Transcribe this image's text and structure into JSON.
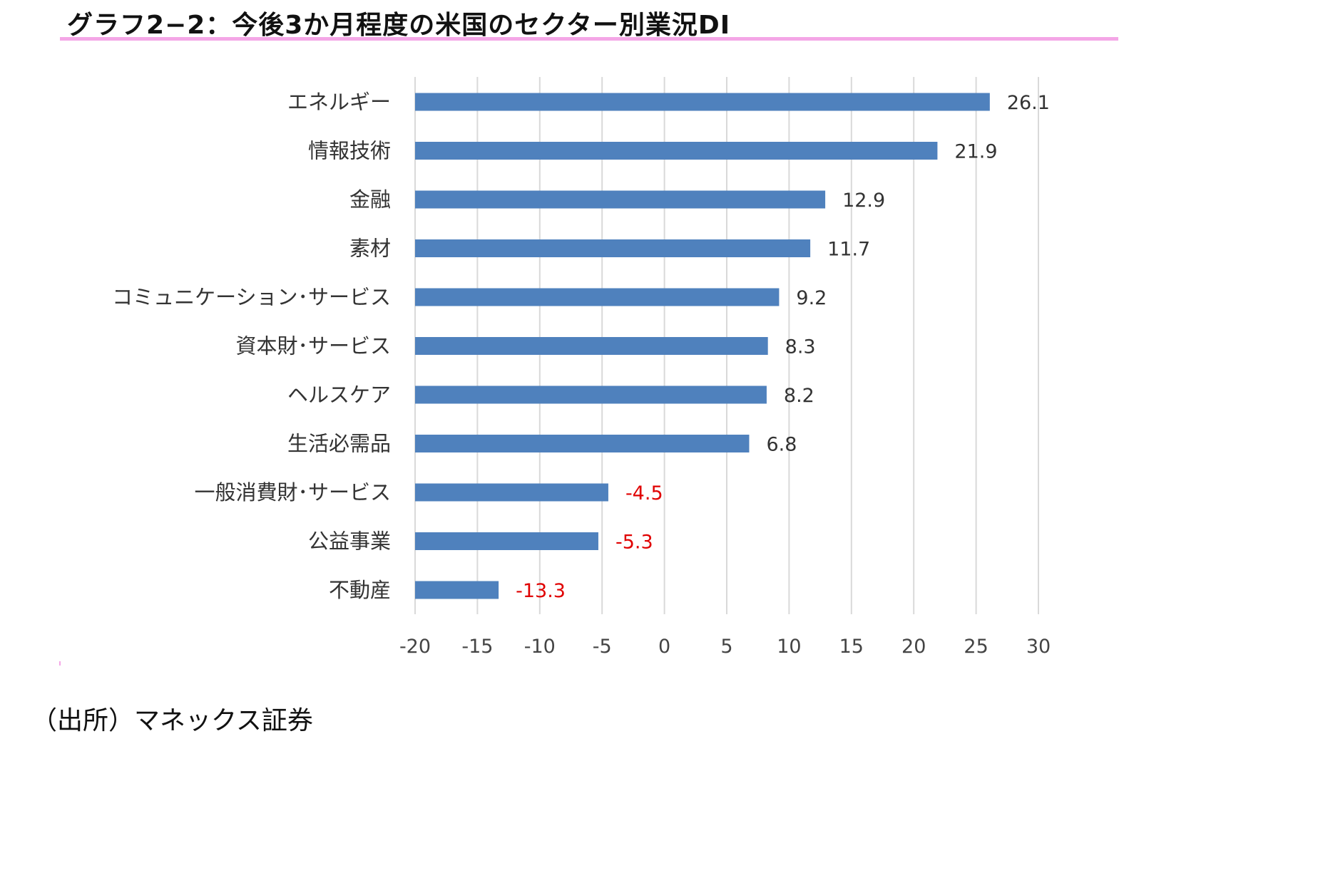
{
  "title": "グラフ2−2：今後3か月程度の米国のセクター別業況DI",
  "source": "（出所）マネックス証券",
  "colors": {
    "accent_rule": "#f4a6e6",
    "bar": "#4f81bd",
    "gridline": "#d9d9d9",
    "positive_label": "#333333",
    "negative_label": "#e00000"
  },
  "chart_data": {
    "type": "bar",
    "orientation": "horizontal",
    "title": "グラフ2−2：今後3か月程度の米国のセクター別業況DI",
    "xlabel": "",
    "ylabel": "",
    "categories": [
      "エネルギー",
      "情報技術",
      "金融",
      "素材",
      "コミュニケーション･サービス",
      "資本財･サービス",
      "ヘルスケア",
      "生活必需品",
      "一般消費財･サービス",
      "公益事業",
      "不動産"
    ],
    "values": [
      26.1,
      21.9,
      12.9,
      11.7,
      9.2,
      8.3,
      8.2,
      6.8,
      -4.5,
      -5.3,
      -13.3
    ],
    "value_labels": [
      "26.1",
      "21.9",
      "12.9",
      "11.7",
      "9.2",
      "8.3",
      "8.2",
      "6.8",
      "-4.5",
      "-5.3",
      "-13.3"
    ],
    "xlim": [
      -20,
      30
    ],
    "ticks": [
      -20,
      -15,
      -10,
      -5,
      0,
      5,
      10,
      15,
      20,
      25,
      30
    ],
    "tick_labels": [
      "-20",
      "-15",
      "-10",
      "-5",
      "0",
      "5",
      "10",
      "15",
      "20",
      "25",
      "30"
    ],
    "grid": true,
    "legend": "none"
  }
}
